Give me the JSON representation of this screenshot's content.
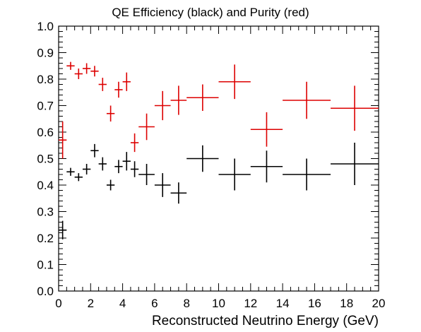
{
  "chart_data": {
    "type": "scatter",
    "title": "QE Efficiency (black) and Purity (red)",
    "xlabel": "Reconstructed Neutrino Energy (GeV)",
    "ylabel": "",
    "xlim": [
      0,
      20
    ],
    "ylim": [
      0,
      1.0
    ],
    "grid": false,
    "legend": "none",
    "xticks": [
      0,
      2,
      4,
      6,
      8,
      10,
      12,
      14,
      16,
      18,
      20
    ],
    "xtick_labels": [
      "0",
      "2",
      "4",
      "6",
      "8",
      "10",
      "12",
      "14",
      "16",
      "18",
      "20"
    ],
    "yticks": [
      0,
      0.1,
      0.2,
      0.3,
      0.4,
      0.5,
      0.6,
      0.7,
      0.8,
      0.9,
      1.0
    ],
    "ytick_labels": [
      "0.0",
      "0.1",
      "0.2",
      "0.3",
      "0.4",
      "0.5",
      "0.6",
      "0.7",
      "0.8",
      "0.9",
      "1.0"
    ],
    "series": [
      {
        "color": "#000000",
        "points": [
          {
            "x": 0.25,
            "xerr": 0.25,
            "y": 0.23,
            "yerr": 0.035
          },
          {
            "x": 0.75,
            "xerr": 0.25,
            "y": 0.45,
            "yerr": 0.015
          },
          {
            "x": 1.25,
            "xerr": 0.25,
            "y": 0.43,
            "yerr": 0.015
          },
          {
            "x": 1.75,
            "xerr": 0.25,
            "y": 0.46,
            "yerr": 0.02
          },
          {
            "x": 2.25,
            "xerr": 0.25,
            "y": 0.53,
            "yerr": 0.025
          },
          {
            "x": 2.75,
            "xerr": 0.25,
            "y": 0.48,
            "yerr": 0.025
          },
          {
            "x": 3.25,
            "xerr": 0.25,
            "y": 0.4,
            "yerr": 0.02
          },
          {
            "x": 3.75,
            "xerr": 0.25,
            "y": 0.47,
            "yerr": 0.025
          },
          {
            "x": 4.25,
            "xerr": 0.25,
            "y": 0.49,
            "yerr": 0.035
          },
          {
            "x": 4.75,
            "xerr": 0.25,
            "y": 0.46,
            "yerr": 0.03
          },
          {
            "x": 5.5,
            "xerr": 0.5,
            "y": 0.44,
            "yerr": 0.04
          },
          {
            "x": 6.5,
            "xerr": 0.5,
            "y": 0.4,
            "yerr": 0.045
          },
          {
            "x": 7.5,
            "xerr": 0.5,
            "y": 0.37,
            "yerr": 0.04
          },
          {
            "x": 9.0,
            "xerr": 1.0,
            "y": 0.5,
            "yerr": 0.05
          },
          {
            "x": 11.0,
            "xerr": 1.0,
            "y": 0.44,
            "yerr": 0.06
          },
          {
            "x": 13.0,
            "xerr": 1.0,
            "y": 0.47,
            "yerr": 0.06
          },
          {
            "x": 15.5,
            "xerr": 1.5,
            "y": 0.44,
            "yerr": 0.06
          },
          {
            "x": 18.5,
            "xerr": 1.5,
            "y": 0.48,
            "yerr": 0.08
          }
        ]
      },
      {
        "color": "#dd0000",
        "points": [
          {
            "x": 0.25,
            "xerr": 0.25,
            "y": 0.57,
            "yerr": 0.07
          },
          {
            "x": 0.75,
            "xerr": 0.25,
            "y": 0.85,
            "yerr": 0.015
          },
          {
            "x": 1.25,
            "xerr": 0.25,
            "y": 0.82,
            "yerr": 0.02
          },
          {
            "x": 1.75,
            "xerr": 0.25,
            "y": 0.84,
            "yerr": 0.02
          },
          {
            "x": 2.25,
            "xerr": 0.25,
            "y": 0.83,
            "yerr": 0.02
          },
          {
            "x": 2.75,
            "xerr": 0.25,
            "y": 0.78,
            "yerr": 0.025
          },
          {
            "x": 3.25,
            "xerr": 0.25,
            "y": 0.67,
            "yerr": 0.03
          },
          {
            "x": 3.75,
            "xerr": 0.25,
            "y": 0.76,
            "yerr": 0.03
          },
          {
            "x": 4.25,
            "xerr": 0.25,
            "y": 0.79,
            "yerr": 0.035
          },
          {
            "x": 4.75,
            "xerr": 0.25,
            "y": 0.56,
            "yerr": 0.035
          },
          {
            "x": 5.5,
            "xerr": 0.5,
            "y": 0.62,
            "yerr": 0.05
          },
          {
            "x": 6.5,
            "xerr": 0.5,
            "y": 0.7,
            "yerr": 0.055
          },
          {
            "x": 7.5,
            "xerr": 0.5,
            "y": 0.72,
            "yerr": 0.055
          },
          {
            "x": 9.0,
            "xerr": 1.0,
            "y": 0.73,
            "yerr": 0.05
          },
          {
            "x": 11.0,
            "xerr": 1.0,
            "y": 0.79,
            "yerr": 0.065
          },
          {
            "x": 13.0,
            "xerr": 1.0,
            "y": 0.61,
            "yerr": 0.065
          },
          {
            "x": 15.5,
            "xerr": 1.5,
            "y": 0.72,
            "yerr": 0.07
          },
          {
            "x": 18.5,
            "xerr": 1.5,
            "y": 0.69,
            "yerr": 0.085
          }
        ]
      }
    ]
  }
}
